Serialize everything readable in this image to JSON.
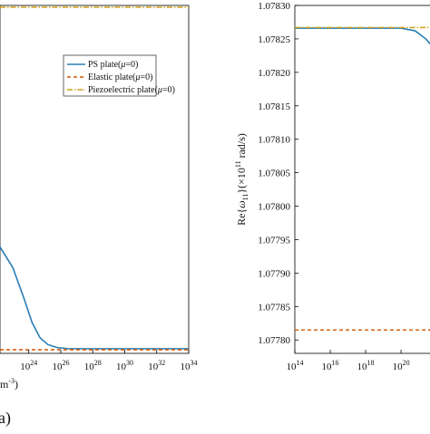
{
  "chart_data": [
    {
      "type": "line",
      "panel_label": "a)",
      "xlabel_fragment": "m",
      "xlabel_exponent": "-3",
      "xlabel_suffix": ")",
      "xscale": "log",
      "xlim_exponents": [
        22.2,
        34
      ],
      "x_tick_base": "10",
      "x_tick_exponents": [
        "24",
        "26",
        "28",
        "30",
        "32",
        "34"
      ],
      "ylim_normalized": [
        0,
        1
      ],
      "grid": false,
      "legend_placement": "right",
      "series": [
        {
          "name_prefix": "PS plate(",
          "name_symbol": "μ",
          "name_suffix": "=0)",
          "color": "#2a7fb4",
          "style": "solid",
          "points": [
            {
              "x_exp": 22.2,
              "y": 0.3
            },
            {
              "x_exp": 23.0,
              "y": 0.24
            },
            {
              "x_exp": 23.7,
              "y": 0.15
            },
            {
              "x_exp": 24.2,
              "y": 0.08
            },
            {
              "x_exp": 24.7,
              "y": 0.035
            },
            {
              "x_exp": 25.2,
              "y": 0.015
            },
            {
              "x_exp": 25.8,
              "y": 0.006
            },
            {
              "x_exp": 26.5,
              "y": 0.003
            },
            {
              "x_exp": 34.0,
              "y": 0.003
            }
          ]
        },
        {
          "name_prefix": "Elastic plate(",
          "name_symbol": "μ",
          "name_suffix": "=0)",
          "color": "#d35400",
          "style": "dashed",
          "points": [
            {
              "x_exp": 22.2,
              "y": 0.0
            },
            {
              "x_exp": 34.0,
              "y": 0.0
            }
          ]
        },
        {
          "name_prefix": "Piezoelectric plate(",
          "name_symbol": "μ",
          "name_suffix": "=0)",
          "color": "#d4a017",
          "style": "dashdot",
          "points": [
            {
              "x_exp": 22.2,
              "y": 1.0
            },
            {
              "x_exp": 34.0,
              "y": 1.0
            }
          ]
        }
      ]
    },
    {
      "type": "line",
      "ylabel_prefix": "Re{",
      "ylabel_symbol": "ω",
      "ylabel_subscript": "11",
      "ylabel_middle": "}(×10",
      "ylabel_exponent": "11",
      "ylabel_suffix": " rad/s)",
      "xscale": "log",
      "xlim_exponents": [
        14,
        22.2
      ],
      "ylim": [
        1.07778,
        1.0783
      ],
      "y_ticks": [
        "1.07830",
        "1.07825",
        "1.07820",
        "1.07815",
        "1.07810",
        "1.07805",
        "1.07800",
        "1.07795",
        "1.07790",
        "1.07785",
        "1.07780"
      ],
      "x_tick_base": "10",
      "x_tick_exponents": [
        "14",
        "16",
        "18",
        "20"
      ],
      "grid": false,
      "series": [
        {
          "color": "#2a7fb4",
          "style": "solid",
          "points": [
            {
              "x_exp": 14.0,
              "y": 1.078266
            },
            {
              "x_exp": 20.0,
              "y": 1.078266
            },
            {
              "x_exp": 20.8,
              "y": 1.078262
            },
            {
              "x_exp": 21.4,
              "y": 1.07825
            },
            {
              "x_exp": 22.0,
              "y": 1.078232
            },
            {
              "x_exp": 22.2,
              "y": 1.078226
            }
          ]
        },
        {
          "color": "#d4a017",
          "style": "dashdot",
          "points": [
            {
              "x_exp": 14.0,
              "y": 1.078267
            },
            {
              "x_exp": 22.2,
              "y": 1.078267
            }
          ]
        },
        {
          "color": "#d35400",
          "style": "dashed",
          "points": [
            {
              "x_exp": 14.0,
              "y": 1.077815
            },
            {
              "x_exp": 22.2,
              "y": 1.077815
            }
          ]
        }
      ]
    }
  ]
}
